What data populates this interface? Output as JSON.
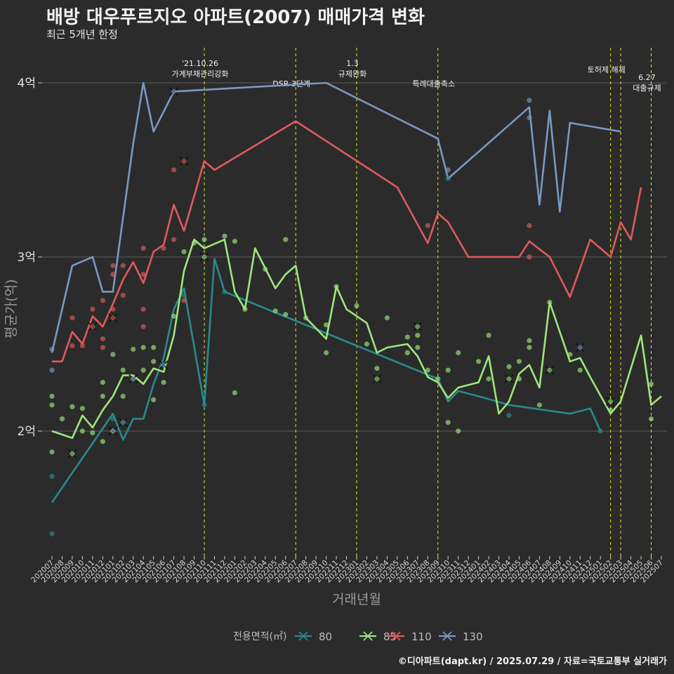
{
  "title": "배방 대우푸르지오 아파트(2007) 매매가격 변화",
  "subtitle": "최근 5개년 한정",
  "caption": "©디아파트(dapt.kr) / 2025.07.29 / 자료=국토교통부 실거래가",
  "chart_data": {
    "type": "line",
    "xlabel": "거래년월",
    "ylabel": "평균가(억)",
    "x": [
      "202007",
      "202008",
      "202009",
      "202010",
      "202011",
      "202012",
      "202101",
      "202102",
      "202103",
      "202104",
      "202105",
      "202106",
      "202107",
      "202108",
      "202109",
      "202110",
      "202111",
      "202112",
      "202201",
      "202202",
      "202203",
      "202204",
      "202205",
      "202206",
      "202207",
      "202208",
      "202209",
      "202210",
      "202211",
      "202212",
      "202301",
      "202302",
      "202303",
      "202304",
      "202305",
      "202306",
      "202307",
      "202308",
      "202309",
      "202310",
      "202311",
      "202312",
      "202401",
      "202402",
      "202403",
      "202404",
      "202405",
      "202406",
      "202407",
      "202408",
      "202409",
      "202410",
      "202411",
      "202412",
      "202501",
      "202502",
      "202503",
      "202504",
      "202505",
      "202506",
      "202507"
    ],
    "y_ticks": [
      {
        "value": 2.0,
        "label": "2억"
      },
      {
        "value": 3.0,
        "label": "3억"
      },
      {
        "value": 4.0,
        "label": "4억"
      }
    ],
    "ylim": [
      1.27,
      4.28
    ],
    "legend": {
      "title": "전용면적(㎡)",
      "position": "bottom"
    },
    "series": [
      {
        "name": "80",
        "color": "#2a8a8a",
        "points": [
          [
            "202007",
            1.59
          ],
          [
            "202101",
            2.1
          ],
          [
            "202102",
            1.95
          ],
          [
            "202103",
            2.07
          ],
          [
            "202104",
            2.07
          ],
          [
            "202105",
            2.27
          ],
          [
            "202106",
            2.42
          ],
          [
            "202107",
            2.7
          ],
          [
            "202108",
            2.82
          ],
          [
            "202110",
            2.15
          ],
          [
            "202111",
            2.99
          ],
          [
            "202112",
            2.8
          ],
          [
            "202309",
            2.3
          ],
          [
            "202310",
            2.17
          ],
          [
            "202311",
            2.23
          ],
          [
            "202401",
            2.2
          ],
          [
            "202404",
            2.15
          ],
          [
            "202410",
            2.1
          ],
          [
            "202412",
            2.13
          ],
          [
            "202501",
            2.0
          ]
        ]
      },
      {
        "name": "85",
        "color": "#9de67b",
        "points": [
          [
            "202007",
            2.0
          ],
          [
            "202009",
            1.96
          ],
          [
            "202010",
            2.09
          ],
          [
            "202011",
            2.02
          ],
          [
            "202012",
            2.12
          ],
          [
            "202101",
            2.2
          ],
          [
            "202102",
            2.32
          ],
          [
            "202103",
            2.32
          ],
          [
            "202104",
            2.27
          ],
          [
            "202105",
            2.36
          ],
          [
            "202106",
            2.34
          ],
          [
            "202107",
            2.55
          ],
          [
            "202108",
            2.92
          ],
          [
            "202109",
            3.1
          ],
          [
            "202110",
            3.05
          ],
          [
            "202112",
            3.1
          ],
          [
            "202201",
            2.8
          ],
          [
            "202202",
            2.7
          ],
          [
            "202203",
            3.05
          ],
          [
            "202205",
            2.82
          ],
          [
            "202206",
            2.9
          ],
          [
            "202207",
            2.95
          ],
          [
            "202208",
            2.65
          ],
          [
            "202210",
            2.53
          ],
          [
            "202211",
            2.83
          ],
          [
            "202212",
            2.7
          ],
          [
            "202302",
            2.62
          ],
          [
            "202303",
            2.45
          ],
          [
            "202304",
            2.48
          ],
          [
            "202306",
            2.5
          ],
          [
            "202307",
            2.43
          ],
          [
            "202308",
            2.31
          ],
          [
            "202309",
            2.28
          ],
          [
            "202310",
            2.19
          ],
          [
            "202311",
            2.25
          ],
          [
            "202401",
            2.28
          ],
          [
            "202402",
            2.43
          ],
          [
            "202403",
            2.1
          ],
          [
            "202404",
            2.17
          ],
          [
            "202405",
            2.33
          ],
          [
            "202406",
            2.38
          ],
          [
            "202407",
            2.25
          ],
          [
            "202408",
            2.74
          ],
          [
            "202410",
            2.4
          ],
          [
            "202411",
            2.42
          ],
          [
            "202412",
            2.31
          ],
          [
            "202502",
            2.1
          ],
          [
            "202503",
            2.17
          ],
          [
            "202505",
            2.55
          ],
          [
            "202506",
            2.15
          ],
          [
            "202507",
            2.2
          ]
        ]
      },
      {
        "name": "110",
        "color": "#e05a5a",
        "points": [
          [
            "202007",
            2.4
          ],
          [
            "202008",
            2.4
          ],
          [
            "202009",
            2.57
          ],
          [
            "202010",
            2.5
          ],
          [
            "202011",
            2.66
          ],
          [
            "202012",
            2.6
          ],
          [
            "202101",
            2.73
          ],
          [
            "202102",
            2.87
          ],
          [
            "202103",
            2.97
          ],
          [
            "202104",
            2.85
          ],
          [
            "202105",
            3.03
          ],
          [
            "202106",
            3.07
          ],
          [
            "202107",
            3.3
          ],
          [
            "202108",
            3.15
          ],
          [
            "202110",
            3.55
          ],
          [
            "202111",
            3.5
          ],
          [
            "202207",
            3.78
          ],
          [
            "202305",
            3.4
          ],
          [
            "202308",
            3.08
          ],
          [
            "202309",
            3.25
          ],
          [
            "202310",
            3.2
          ],
          [
            "202312",
            3.0
          ],
          [
            "202405",
            3.0
          ],
          [
            "202406",
            3.09
          ],
          [
            "202408",
            3.0
          ],
          [
            "202410",
            2.77
          ],
          [
            "202412",
            3.1
          ],
          [
            "202502",
            3.0
          ],
          [
            "202503",
            3.2
          ],
          [
            "202504",
            3.1
          ],
          [
            "202505",
            3.4
          ]
        ]
      },
      {
        "name": "130",
        "color": "#7a99c2",
        "points": [
          [
            "202007",
            2.45
          ],
          [
            "202009",
            2.95
          ],
          [
            "202011",
            3.0
          ],
          [
            "202012",
            2.8
          ],
          [
            "202101",
            2.8
          ],
          [
            "202103",
            3.65
          ],
          [
            "202104",
            4.0
          ],
          [
            "202105",
            3.72
          ],
          [
            "202107",
            3.95
          ],
          [
            "202207",
            3.99
          ],
          [
            "202210",
            4.0
          ],
          [
            "202309",
            3.68
          ],
          [
            "202310",
            3.45
          ],
          [
            "202406",
            3.86
          ],
          [
            "202407",
            3.3
          ],
          [
            "202408",
            3.84
          ],
          [
            "202409",
            3.26
          ],
          [
            "202410",
            3.77
          ],
          [
            "202503",
            3.72
          ]
        ]
      }
    ],
    "scatter_points": [
      {
        "series": "80",
        "points": [
          [
            "202007",
            1.74
          ],
          [
            "202007",
            1.41
          ],
          [
            "202101",
            2.07
          ],
          [
            "202108",
            2.78
          ],
          [
            "202110",
            2.15
          ],
          [
            "202112",
            2.8
          ],
          [
            "202310",
            3.45
          ],
          [
            "202404",
            2.09
          ],
          [
            "202501",
            2.0
          ]
        ]
      },
      {
        "series": "85",
        "points": [
          [
            "202007",
            2.2
          ],
          [
            "202007",
            2.15
          ],
          [
            "202007",
            1.88
          ],
          [
            "202008",
            2.07
          ],
          [
            "202009",
            2.14
          ],
          [
            "202010",
            2.13
          ],
          [
            "202010",
            2.0
          ],
          [
            "202011",
            1.99
          ],
          [
            "202012",
            2.28
          ],
          [
            "202012",
            2.2
          ],
          [
            "202012",
            1.94
          ],
          [
            "202101",
            2.44
          ],
          [
            "202101",
            2.0
          ],
          [
            "202102",
            2.35
          ],
          [
            "202102",
            2.2
          ],
          [
            "202103",
            2.47
          ],
          [
            "202103",
            2.3
          ],
          [
            "202104",
            2.48
          ],
          [
            "202104",
            2.35
          ],
          [
            "202105",
            2.48
          ],
          [
            "202105",
            2.4
          ],
          [
            "202105",
            2.18
          ],
          [
            "202106",
            2.28
          ],
          [
            "202107",
            2.66
          ],
          [
            "202108",
            3.03
          ],
          [
            "202109",
            3.08
          ],
          [
            "202110",
            3.1
          ],
          [
            "202112",
            3.12
          ],
          [
            "202201",
            3.09
          ],
          [
            "202201",
            2.22
          ],
          [
            "202202",
            2.7
          ],
          [
            "202204",
            2.93
          ],
          [
            "202205",
            2.69
          ],
          [
            "202206",
            3.1
          ],
          [
            "202206",
            2.67
          ],
          [
            "202208",
            2.65
          ],
          [
            "202210",
            2.61
          ],
          [
            "202210",
            2.45
          ],
          [
            "202211",
            2.83
          ],
          [
            "202301",
            2.72
          ],
          [
            "202302",
            2.5
          ],
          [
            "202303",
            2.36
          ],
          [
            "202304",
            2.65
          ],
          [
            "202306",
            2.54
          ],
          [
            "202306",
            2.45
          ],
          [
            "202307",
            2.55
          ],
          [
            "202307",
            2.48
          ],
          [
            "202308",
            2.35
          ],
          [
            "202309",
            2.3
          ],
          [
            "202310",
            2.35
          ],
          [
            "202310",
            2.05
          ],
          [
            "202311",
            2.45
          ],
          [
            "202311",
            2.0
          ],
          [
            "202401",
            2.4
          ],
          [
            "202402",
            2.55
          ],
          [
            "202402",
            2.3
          ],
          [
            "202404",
            2.37
          ],
          [
            "202405",
            2.4
          ],
          [
            "202405",
            2.3
          ],
          [
            "202406",
            2.52
          ],
          [
            "202406",
            2.48
          ],
          [
            "202407",
            2.15
          ],
          [
            "202408",
            2.74
          ],
          [
            "202410",
            2.44
          ],
          [
            "202411",
            2.35
          ],
          [
            "202502",
            2.12
          ],
          [
            "202506",
            2.27
          ],
          [
            "202506",
            2.07
          ]
        ]
      },
      {
        "series": "110",
        "points": [
          [
            "202009",
            2.65
          ],
          [
            "202009",
            2.49
          ],
          [
            "202010",
            2.49
          ],
          [
            "202011",
            2.7
          ],
          [
            "202012",
            2.75
          ],
          [
            "202012",
            2.53
          ],
          [
            "202012",
            2.48
          ],
          [
            "202101",
            2.95
          ],
          [
            "202101",
            2.9
          ],
          [
            "202101",
            2.7
          ],
          [
            "202102",
            2.95
          ],
          [
            "202102",
            2.78
          ],
          [
            "202104",
            3.05
          ],
          [
            "202104",
            2.9
          ],
          [
            "202104",
            2.7
          ],
          [
            "202104",
            2.6
          ],
          [
            "202106",
            3.05
          ],
          [
            "202107",
            3.5
          ],
          [
            "202107",
            3.1
          ],
          [
            "202108",
            2.75
          ],
          [
            "202308",
            3.18
          ],
          [
            "202406",
            3.18
          ],
          [
            "202406",
            3.0
          ]
        ]
      },
      {
        "series": "130",
        "points": [
          [
            "202007",
            2.47
          ],
          [
            "202007",
            2.35
          ],
          [
            "202406",
            3.9
          ],
          [
            "202406",
            3.8
          ],
          [
            "202310",
            3.5
          ]
        ]
      }
    ],
    "x_markers": [
      {
        "series": "80",
        "points": []
      },
      {
        "series": "85",
        "points": [
          [
            "202009",
            1.87
          ],
          [
            "202110",
            3.0
          ],
          [
            "202303",
            2.3
          ],
          [
            "202307",
            2.6
          ],
          [
            "202404",
            2.3
          ],
          [
            "202408",
            2.35
          ],
          [
            "202502",
            2.17
          ]
        ]
      },
      {
        "series": "110",
        "points": [
          [
            "202011",
            2.6
          ],
          [
            "202101",
            2.65
          ],
          [
            "202108",
            3.55
          ]
        ]
      },
      {
        "series": "130",
        "points": [
          [
            "202101",
            2.0
          ],
          [
            "202102",
            2.05
          ],
          [
            "202103",
            2.3
          ],
          [
            "202106",
            2.38
          ],
          [
            "202107",
            3.95
          ],
          [
            "202411",
            2.48
          ]
        ]
      }
    ],
    "events": [
      {
        "x": "202110",
        "label_lines": [
          "'21.10.26",
          "가계부채관리강화"
        ]
      },
      {
        "x": "202207",
        "label_lines": [
          "DSR 3단계"
        ]
      },
      {
        "x": "202301",
        "label_lines": [
          "1.3",
          "규제완화"
        ]
      },
      {
        "x": "202309",
        "label_lines": [
          "특례대출축소"
        ]
      },
      {
        "x": "202502",
        "label_lines": [
          "토허제 해제"
        ]
      },
      {
        "x": "202503",
        "label_lines": []
      },
      {
        "x": "202506",
        "label_lines": [
          "6.27",
          "대출규제"
        ]
      }
    ]
  }
}
